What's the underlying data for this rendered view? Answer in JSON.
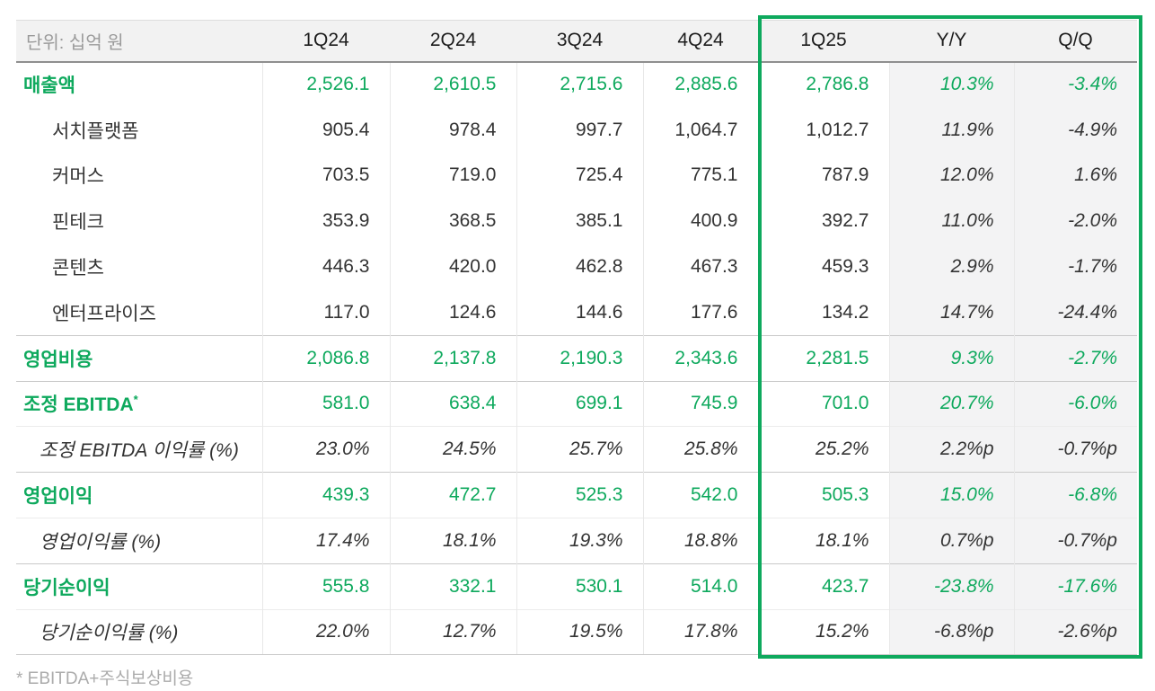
{
  "unit_label": "단위: 십억 원",
  "columns": [
    "1Q24",
    "2Q24",
    "3Q24",
    "4Q24",
    "1Q25",
    "Y/Y",
    "Q/Q"
  ],
  "highlighted_columns": [
    "1Q25",
    "Y/Y",
    "Q/Q"
  ],
  "rows": [
    {
      "id": "revenue",
      "label": "매출액",
      "type": "main",
      "group_start": false,
      "values": [
        "2,526.1",
        "2,610.5",
        "2,715.6",
        "2,885.6",
        "2,786.8",
        "10.3%",
        "-3.4%"
      ]
    },
    {
      "id": "search-platform",
      "label": "서치플랫폼",
      "type": "sub",
      "group_start": false,
      "values": [
        "905.4",
        "978.4",
        "997.7",
        "1,064.7",
        "1,012.7",
        "11.9%",
        "-4.9%"
      ]
    },
    {
      "id": "commerce",
      "label": "커머스",
      "type": "sub",
      "group_start": false,
      "values": [
        "703.5",
        "719.0",
        "725.4",
        "775.1",
        "787.9",
        "12.0%",
        "1.6%"
      ]
    },
    {
      "id": "fintech",
      "label": "핀테크",
      "type": "sub",
      "group_start": false,
      "values": [
        "353.9",
        "368.5",
        "385.1",
        "400.9",
        "392.7",
        "11.0%",
        "-2.0%"
      ]
    },
    {
      "id": "contents",
      "label": "콘텐츠",
      "type": "sub",
      "group_start": false,
      "values": [
        "446.3",
        "420.0",
        "462.8",
        "467.3",
        "459.3",
        "2.9%",
        "-1.7%"
      ]
    },
    {
      "id": "enterprise",
      "label": "엔터프라이즈",
      "type": "sub",
      "group_start": false,
      "values": [
        "117.0",
        "124.6",
        "144.6",
        "177.6",
        "134.2",
        "14.7%",
        "-24.4%"
      ]
    },
    {
      "id": "operating-expenses",
      "label": "영업비용",
      "type": "main",
      "group_start": true,
      "values": [
        "2,086.8",
        "2,137.8",
        "2,190.3",
        "2,343.6",
        "2,281.5",
        "9.3%",
        "-2.7%"
      ]
    },
    {
      "id": "adjusted-ebitda",
      "label": "조정 EBITDA",
      "label_sup": "*",
      "type": "main",
      "group_start": true,
      "values": [
        "581.0",
        "638.4",
        "699.1",
        "745.9",
        "701.0",
        "20.7%",
        "-6.0%"
      ]
    },
    {
      "id": "adjusted-ebitda-margin",
      "label": "조정 EBITDA 이익률 (%)",
      "type": "ratio",
      "group_start": false,
      "values": [
        "23.0%",
        "24.5%",
        "25.7%",
        "25.8%",
        "25.2%",
        "2.2%p",
        "-0.7%p"
      ]
    },
    {
      "id": "operating-profit",
      "label": "영업이익",
      "type": "main",
      "group_start": true,
      "values": [
        "439.3",
        "472.7",
        "525.3",
        "542.0",
        "505.3",
        "15.0%",
        "-6.8%"
      ]
    },
    {
      "id": "operating-margin",
      "label": "영업이익률 (%)",
      "type": "ratio",
      "group_start": false,
      "values": [
        "17.4%",
        "18.1%",
        "19.3%",
        "18.8%",
        "18.1%",
        "0.7%p",
        "-0.7%p"
      ]
    },
    {
      "id": "net-profit",
      "label": "당기순이익",
      "type": "main",
      "group_start": true,
      "values": [
        "555.8",
        "332.1",
        "530.1",
        "514.0",
        "423.7",
        "-23.8%",
        "-17.6%"
      ]
    },
    {
      "id": "net-margin",
      "label": "당기순이익률 (%)",
      "type": "ratio",
      "group_start": false,
      "values": [
        "22.0%",
        "12.7%",
        "19.5%",
        "17.8%",
        "15.2%",
        "-6.8%p",
        "-2.6%p"
      ]
    }
  ],
  "footnote": "* EBITDA+주식보상비용",
  "colors": {
    "accent_green": "#0EA95D",
    "highlight_border": "#0EA95D",
    "header_bg": "#F2F2F2",
    "shaded_column_bg": "#F3F3F4",
    "header_border": "#8F8F8F",
    "group_border": "#C9C9C9",
    "light_border": "#ECECEC",
    "unit_text": "#9B9B9B",
    "body_text": "#333333",
    "footnote_text": "#ABABAB"
  }
}
